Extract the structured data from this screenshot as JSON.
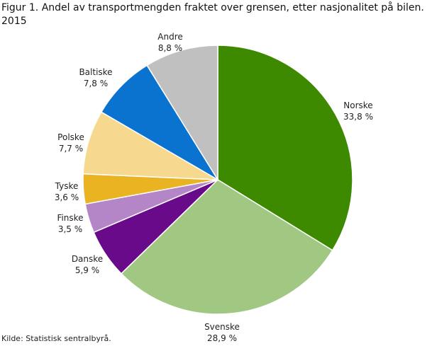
{
  "chart_data": {
    "type": "pie",
    "title": "Figur 1. Andel av transportmengden fraktet over grensen, etter nasjonalitet på bilen. 2015",
    "unit": "%",
    "start": "top, clockwise",
    "slices": [
      {
        "name": "Norske",
        "value": 33.8,
        "label": "33,8  %",
        "color": "#3d8a00"
      },
      {
        "name": "Svenske",
        "value": 28.9,
        "label": "28,9  %",
        "color": "#a0c882"
      },
      {
        "name": "Danske",
        "value": 5.9,
        "label": "5,9  %",
        "color": "#690a8a"
      },
      {
        "name": "Finske",
        "value": 3.5,
        "label": "3,5  %",
        "color": "#b485c7"
      },
      {
        "name": "Tyske",
        "value": 3.6,
        "label": "3,6  %",
        "color": "#e9b321"
      },
      {
        "name": "Polske",
        "value": 7.7,
        "label": "7,7  %",
        "color": "#f6d98f"
      },
      {
        "name": "Baltiske",
        "value": 7.8,
        "label": "7,8  %",
        "color": "#0a73d0"
      },
      {
        "name": "Andre",
        "value": 8.8,
        "label": "8,8  %",
        "color": "#c0c0c0"
      }
    ]
  },
  "title_line1": "Figur 1. Andel av transportmengden fraktet over grensen, etter nasjonalitet på bilen.",
  "title_line2": "2015",
  "source": "Kilde: Statistisk sentralbyrå."
}
